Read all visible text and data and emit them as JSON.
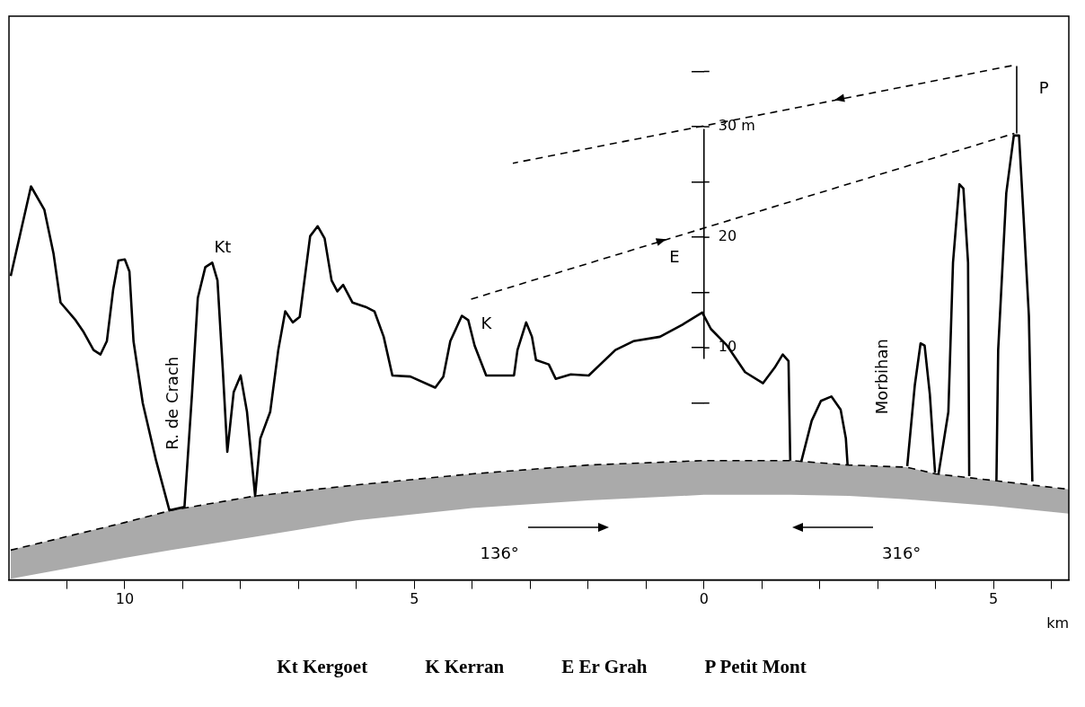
{
  "chart_data": {
    "type": "line",
    "xlabel": "km",
    "xlim": [
      -12,
      6.3
    ],
    "ylim": [
      -11,
      40
    ],
    "xticks": [
      {
        "value": -11,
        "label": null
      },
      {
        "value": -10,
        "label": "10"
      },
      {
        "value": -9,
        "label": null
      },
      {
        "value": -8,
        "label": null
      },
      {
        "value": -7,
        "label": null
      },
      {
        "value": -6,
        "label": null
      },
      {
        "value": -5,
        "label": "5"
      },
      {
        "value": -4,
        "label": null
      },
      {
        "value": -3,
        "label": null
      },
      {
        "value": -2,
        "label": null
      },
      {
        "value": -1,
        "label": null
      },
      0,
      {
        "value": 1,
        "label": null
      },
      {
        "value": 2,
        "label": null
      },
      {
        "value": 3,
        "label": null
      },
      {
        "value": 4,
        "label": null
      },
      5,
      {
        "value": 6,
        "label": null
      }
    ],
    "yticks": [
      {
        "value": 5,
        "label": null
      },
      10,
      {
        "value": 15,
        "label": null
      },
      20,
      {
        "value": 25,
        "label": null
      },
      {
        "value": 30,
        "label": "30 m"
      },
      {
        "value": 35,
        "label": null
      }
    ],
    "grid": false,
    "legend": false,
    "marker": "none",
    "series": [
      {
        "color": "#000000",
        "line_style": "solid",
        "x": [
          -11.97,
          -11.62,
          -11.39,
          -11.23,
          -11.11,
          -10.85,
          -10.72,
          -10.54,
          -10.42,
          -10.31,
          -10.2,
          -10.11,
          -10.0,
          -9.92,
          -9.85,
          -9.69,
          -9.46,
          -9.23,
          -8.97,
          -8.84,
          -8.74,
          -8.61,
          -8.49,
          -8.4,
          -8.31,
          -8.23,
          -8.12,
          -8.0,
          -7.89,
          -7.75,
          -7.66,
          -7.49,
          -7.35,
          -7.23,
          -7.1,
          -6.98,
          -6.8,
          -6.67,
          -6.55,
          -6.43,
          -6.33,
          -6.23,
          -6.07,
          -5.84,
          -5.69,
          -5.53,
          -5.38,
          -5.07,
          -4.64,
          -4.5,
          -4.38,
          -4.18,
          -4.07,
          -3.96,
          -3.76,
          -3.28,
          -3.22,
          -3.07,
          -2.97,
          -2.9,
          -2.68,
          -2.56,
          -2.3,
          -1.99,
          -1.53,
          -1.22,
          -0.76,
          -0.37,
          -0.03,
          0.12,
          0.4,
          0.71,
          1.02,
          1.22,
          1.36,
          1.46,
          1.49
        ],
        "values": [
          16.5,
          24.6,
          22.5,
          18.5,
          14.1,
          12.5,
          11.5,
          9.8,
          9.4,
          10.6,
          15.3,
          17.9,
          18.0,
          16.9,
          10.6,
          5.0,
          -0.2,
          -4.7,
          -4.4,
          5.8,
          14.5,
          17.3,
          17.7,
          16.1,
          8.2,
          0.6,
          6.0,
          7.5,
          4.2,
          -3.4,
          1.8,
          4.2,
          9.8,
          13.3,
          12.3,
          12.8,
          20.1,
          21.0,
          19.9,
          16.1,
          15.1,
          15.7,
          14.1,
          13.7,
          13.3,
          11.0,
          7.5,
          7.4,
          6.4,
          7.4,
          10.6,
          12.9,
          12.5,
          10.2,
          7.5,
          7.5,
          9.8,
          12.3,
          11.0,
          8.9,
          8.5,
          7.2,
          7.6,
          7.5,
          9.8,
          10.6,
          11.0,
          12.1,
          13.2,
          11.7,
          10.2,
          7.8,
          6.8,
          8.2,
          9.4,
          8.8,
          -0.2
        ]
      },
      {
        "color": "#000000",
        "line_style": "solid",
        "x": [
          1.68,
          1.86,
          2.02,
          2.2,
          2.36,
          2.45,
          2.48
        ],
        "values": [
          -0.3,
          3.4,
          5.2,
          5.6,
          4.4,
          1.8,
          -0.6
        ]
      },
      {
        "color": "#000000",
        "line_style": "solid",
        "x": [
          3.51,
          3.64,
          3.74,
          3.81,
          3.9,
          3.99
        ],
        "values": [
          -0.7,
          6.6,
          10.4,
          10.2,
          5.8,
          -1.3
        ]
      },
      {
        "color": "#000000",
        "line_style": "solid",
        "x": [
          4.05,
          4.22,
          4.3,
          4.41,
          4.48,
          4.56,
          4.58
        ],
        "values": [
          -1.4,
          4.2,
          17.7,
          24.8,
          24.4,
          17.7,
          -1.6
        ]
      },
      {
        "color": "#000000",
        "line_style": "solid",
        "x": [
          5.05,
          5.08,
          5.22,
          5.35,
          5.44,
          5.52,
          5.61,
          5.67
        ],
        "values": [
          -2.0,
          9.8,
          24.0,
          29.2,
          29.2,
          21.7,
          12.9,
          -2.1
        ]
      },
      {
        "color": "#000000",
        "line_style": "solid",
        "x": [
          0,
          0
        ],
        "values": [
          9.0,
          29.8
        ]
      },
      {
        "color": "#000000",
        "line_style": "solid",
        "x": [
          5.4,
          5.4
        ],
        "values": [
          29.4,
          35.5
        ]
      },
      {
        "color": "#000000",
        "line_style": "dashed",
        "x": [
          5.39,
          -3.3
        ],
        "values": [
          35.6,
          26.7
        ]
      },
      {
        "color": "#000000",
        "line_style": "dashed",
        "x": [
          -4.02,
          5.36
        ],
        "values": [
          14.4,
          29.4
        ]
      },
      {
        "color": "#000000",
        "line_style": "dashed",
        "x": [
          -11.97,
          -10,
          -9.2,
          -7.75,
          -6,
          -4,
          -2,
          0,
          1.5,
          2.5,
          3.5,
          4,
          5,
          6.3
        ],
        "values": [
          -8.3,
          -5.8,
          -4.7,
          -3.4,
          -2.4,
          -1.4,
          -0.6,
          -0.2,
          -0.2,
          -0.6,
          -0.8,
          -1.4,
          -2.0,
          -2.8
        ],
        "upper": [
          -8.3,
          -5.8,
          -4.7,
          -3.4,
          -2.4,
          -1.4,
          -0.6,
          -0.2,
          -0.2,
          -0.6,
          -0.8,
          -1.4,
          -2.0,
          -2.8
        ],
        "lower": [
          -10.9,
          -9.0,
          -8.3,
          -7.1,
          -5.6,
          -4.5,
          -3.8,
          -3.3,
          -3.3,
          -3.4,
          -3.7,
          -3.9,
          -4.3,
          -5.0
        ]
      }
    ],
    "annotations": [
      "Kt",
      "R. de Crach",
      "K",
      "E",
      "P",
      "Morbihan",
      "136°",
      "316°",
      "Kt Kergoet",
      "K Kerran",
      "E Er Grah",
      "P Petit Mont"
    ]
  }
}
